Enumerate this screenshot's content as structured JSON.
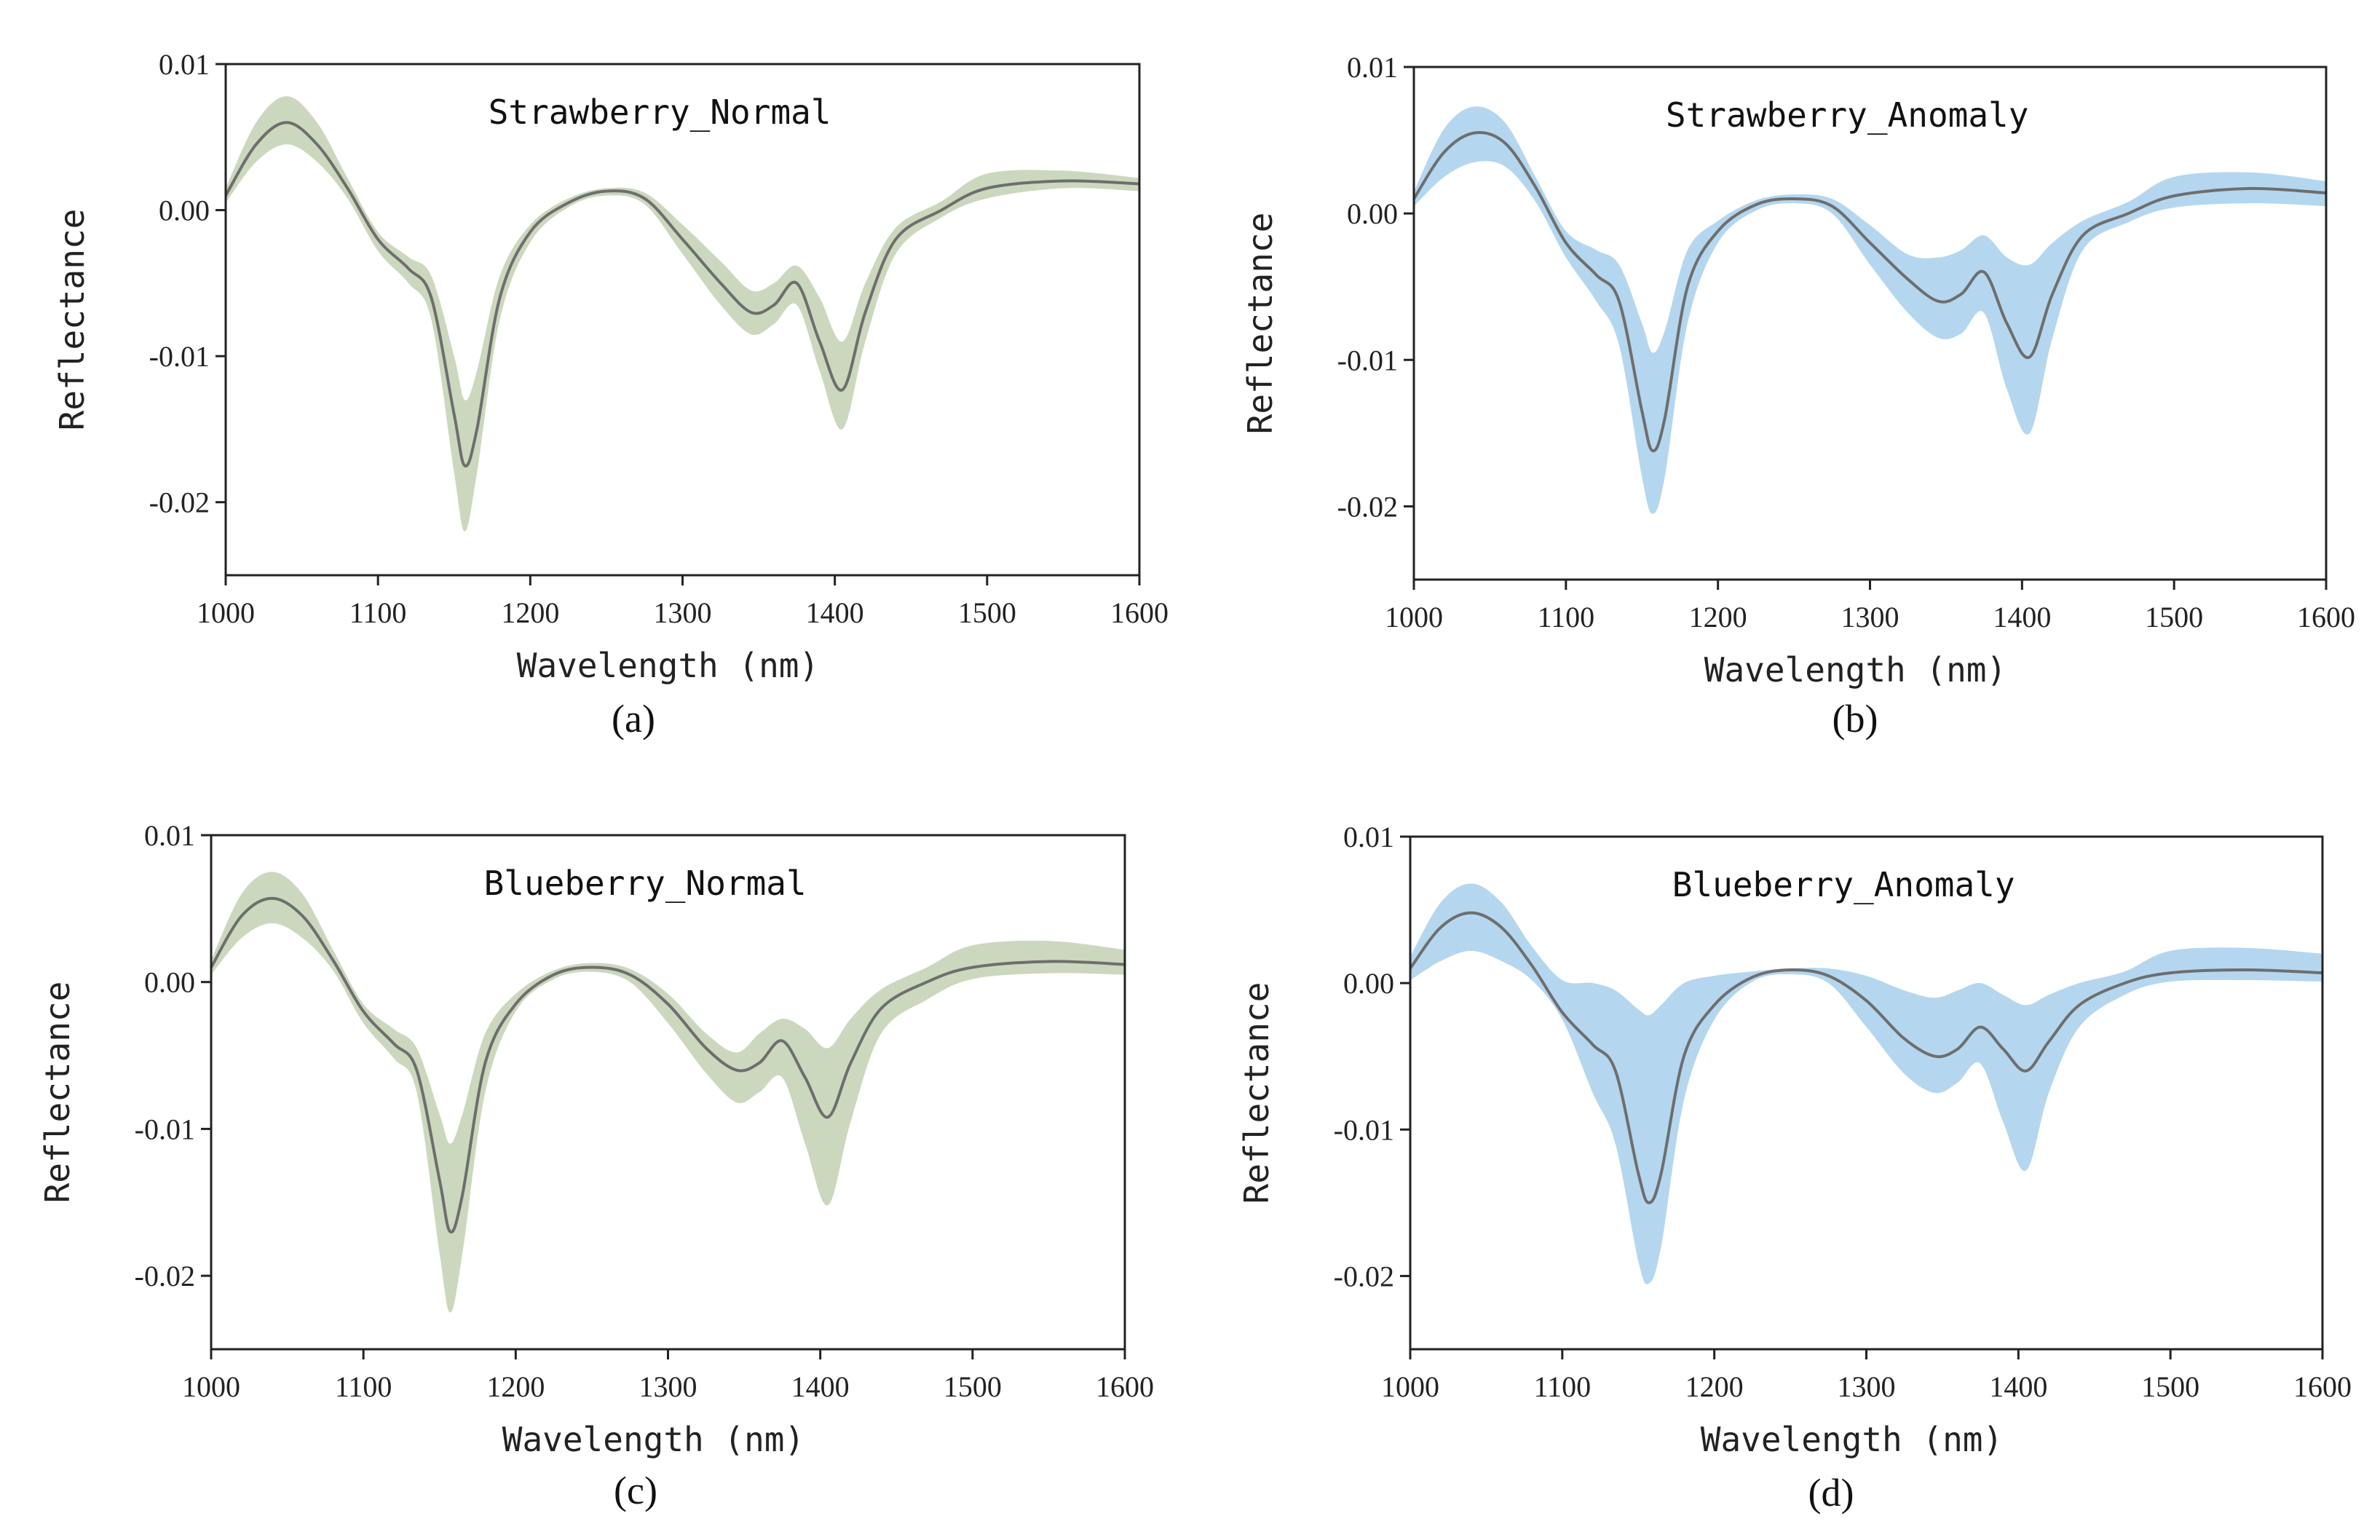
{
  "figure": {
    "colors": {
      "normal_band": "#ccd8bd",
      "anomaly_band": "#b4d7ef",
      "mean_line": "#6e6e6e",
      "axis": "#222222"
    }
  },
  "chart_data": [
    {
      "type": "area",
      "title": "Strawberry_Normal",
      "caption": "(a)",
      "xlabel": "Wavelength (nm)",
      "ylabel": "Reflectance",
      "xlim": [
        1000,
        1600
      ],
      "ylim": [
        -0.025,
        0.01
      ],
      "xticks": [
        1000,
        1100,
        1200,
        1300,
        1400,
        1500,
        1600
      ],
      "xtick_labels": [
        "1000",
        "1100",
        "1200",
        "1300",
        "1400",
        "1500",
        "1600"
      ],
      "yticks": [
        0.01,
        0.0,
        -0.01,
        -0.02
      ],
      "ytick_labels": [
        "0.01",
        "0.00",
        "-0.01",
        "-0.02"
      ],
      "band_color": "#ccd8bd",
      "x": [
        1000,
        1020,
        1040,
        1060,
        1080,
        1100,
        1120,
        1135,
        1150,
        1157,
        1165,
        1180,
        1200,
        1225,
        1250,
        1275,
        1300,
        1325,
        1345,
        1360,
        1375,
        1390,
        1405,
        1420,
        1440,
        1470,
        1500,
        1550,
        1600
      ],
      "series": [
        {
          "name": "mean",
          "values": [
            0.001,
            0.0045,
            0.006,
            0.0045,
            0.0015,
            -0.002,
            -0.004,
            -0.006,
            -0.014,
            -0.0175,
            -0.015,
            -0.006,
            -0.0015,
            0.0005,
            0.0013,
            0.0008,
            -0.002,
            -0.005,
            -0.007,
            -0.0065,
            -0.005,
            -0.009,
            -0.0123,
            -0.007,
            -0.002,
            0.0,
            0.0015,
            0.002,
            0.0018
          ]
        },
        {
          "name": "upper",
          "values": [
            0.0015,
            0.006,
            0.0078,
            0.006,
            0.0022,
            -0.0015,
            -0.0032,
            -0.0045,
            -0.01,
            -0.013,
            -0.011,
            -0.0045,
            -0.001,
            0.0008,
            0.0015,
            0.0012,
            -0.001,
            -0.0035,
            -0.0055,
            -0.005,
            -0.0038,
            -0.006,
            -0.009,
            -0.005,
            -0.0012,
            0.0006,
            0.0025,
            0.0027,
            0.0022
          ]
        },
        {
          "name": "lower",
          "values": [
            0.0005,
            0.0033,
            0.0045,
            0.0033,
            0.0008,
            -0.0028,
            -0.005,
            -0.0075,
            -0.018,
            -0.022,
            -0.018,
            -0.0075,
            -0.0022,
            0.0002,
            0.001,
            0.0004,
            -0.003,
            -0.0065,
            -0.0085,
            -0.0078,
            -0.0065,
            -0.011,
            -0.015,
            -0.009,
            -0.003,
            -0.0005,
            0.0008,
            0.0015,
            0.0013
          ]
        }
      ]
    },
    {
      "type": "area",
      "title": "Strawberry_Anomaly",
      "caption": "(b)",
      "xlabel": "Wavelength (nm)",
      "ylabel": "Reflectance",
      "xlim": [
        1000,
        1600
      ],
      "ylim": [
        -0.025,
        0.01
      ],
      "xticks": [
        1000,
        1100,
        1200,
        1300,
        1400,
        1500,
        1600
      ],
      "xtick_labels": [
        "1000",
        "1100",
        "1200",
        "1300",
        "1400",
        "1500",
        "1600"
      ],
      "yticks": [
        0.01,
        0.0,
        -0.01,
        -0.02
      ],
      "ytick_labels": [
        "0.01",
        "0.00",
        "-0.01",
        "-0.02"
      ],
      "band_color": "#b4d7ef",
      "x": [
        1000,
        1020,
        1040,
        1060,
        1080,
        1100,
        1120,
        1135,
        1150,
        1157,
        1165,
        1180,
        1200,
        1225,
        1250,
        1275,
        1300,
        1325,
        1345,
        1360,
        1375,
        1390,
        1405,
        1420,
        1440,
        1470,
        1500,
        1550,
        1600
      ],
      "series": [
        {
          "name": "mean",
          "values": [
            0.001,
            0.0042,
            0.0055,
            0.0048,
            0.0018,
            -0.002,
            -0.0042,
            -0.006,
            -0.0135,
            -0.0162,
            -0.014,
            -0.005,
            -0.0012,
            0.0006,
            0.001,
            0.0005,
            -0.002,
            -0.0045,
            -0.006,
            -0.0055,
            -0.004,
            -0.0075,
            -0.0098,
            -0.0055,
            -0.0015,
            0.0,
            0.0012,
            0.0017,
            0.0014
          ]
        },
        {
          "name": "upper",
          "values": [
            0.0015,
            0.0058,
            0.0073,
            0.0062,
            0.0025,
            -0.0012,
            -0.0025,
            -0.0035,
            -0.0075,
            -0.0095,
            -0.008,
            -0.0025,
            -0.0005,
            0.0009,
            0.0013,
            0.001,
            -0.0008,
            -0.0028,
            -0.003,
            -0.0025,
            -0.0015,
            -0.003,
            -0.0035,
            -0.002,
            -0.0005,
            0.0008,
            0.0025,
            0.0028,
            0.0022
          ]
        },
        {
          "name": "lower",
          "values": [
            0.0005,
            0.0025,
            0.0035,
            0.0032,
            0.0008,
            -0.003,
            -0.006,
            -0.009,
            -0.018,
            -0.0205,
            -0.018,
            -0.0075,
            -0.002,
            0.0002,
            0.0007,
            0.0,
            -0.0035,
            -0.0068,
            -0.0085,
            -0.0082,
            -0.0068,
            -0.012,
            -0.015,
            -0.0085,
            -0.0025,
            -0.0006,
            0.0004,
            0.0007,
            0.0005
          ]
        }
      ]
    },
    {
      "type": "area",
      "title": "Blueberry_Normal",
      "caption": "(c)",
      "xlabel": "Wavelength (nm)",
      "ylabel": "Reflectance",
      "xlim": [
        1000,
        1600
      ],
      "ylim": [
        -0.025,
        0.01
      ],
      "xticks": [
        1000,
        1100,
        1200,
        1300,
        1400,
        1500,
        1600
      ],
      "xtick_labels": [
        "1000",
        "1100",
        "1200",
        "1300",
        "1400",
        "1500",
        "1600"
      ],
      "yticks": [
        0.01,
        0.0,
        -0.01,
        -0.02
      ],
      "ytick_labels": [
        "0.01",
        "0.00",
        "-0.01",
        "-0.02"
      ],
      "band_color": "#ccd8bd",
      "x": [
        1000,
        1020,
        1040,
        1060,
        1080,
        1100,
        1120,
        1135,
        1150,
        1157,
        1165,
        1180,
        1200,
        1225,
        1250,
        1275,
        1300,
        1325,
        1345,
        1360,
        1375,
        1390,
        1405,
        1420,
        1440,
        1470,
        1500,
        1550,
        1600
      ],
      "series": [
        {
          "name": "mean",
          "values": [
            0.001,
            0.0045,
            0.0057,
            0.0045,
            0.0015,
            -0.002,
            -0.0042,
            -0.006,
            -0.0135,
            -0.017,
            -0.0145,
            -0.0055,
            -0.0015,
            0.0005,
            0.001,
            0.0005,
            -0.0015,
            -0.0045,
            -0.006,
            -0.0055,
            -0.004,
            -0.0065,
            -0.0092,
            -0.0055,
            -0.0018,
            0.0,
            0.001,
            0.0014,
            0.0012
          ]
        },
        {
          "name": "upper",
          "values": [
            0.0015,
            0.006,
            0.0075,
            0.006,
            0.0022,
            -0.0015,
            -0.0032,
            -0.0045,
            -0.009,
            -0.011,
            -0.009,
            -0.0035,
            -0.0008,
            0.0008,
            0.0013,
            0.0009,
            -0.0008,
            -0.0035,
            -0.0048,
            -0.0035,
            -0.0025,
            -0.0032,
            -0.0045,
            -0.0025,
            -0.0005,
            0.001,
            0.0025,
            0.0028,
            0.0022
          ]
        },
        {
          "name": "lower",
          "values": [
            0.0005,
            0.003,
            0.004,
            0.003,
            0.0008,
            -0.0028,
            -0.0052,
            -0.0075,
            -0.0185,
            -0.0225,
            -0.0185,
            -0.0075,
            -0.002,
            0.0002,
            0.0007,
            0.0,
            -0.0028,
            -0.0062,
            -0.0082,
            -0.0075,
            -0.0065,
            -0.011,
            -0.0152,
            -0.0095,
            -0.0035,
            -0.0012,
            0.0002,
            0.0006,
            0.0005
          ]
        }
      ]
    },
    {
      "type": "area",
      "title": "Blueberry_Anomaly",
      "caption": "(d)",
      "xlabel": "Wavelength (nm)",
      "ylabel": "Reflectance",
      "xlim": [
        1000,
        1600
      ],
      "ylim": [
        -0.025,
        0.01
      ],
      "xticks": [
        1000,
        1100,
        1200,
        1300,
        1400,
        1500,
        1600
      ],
      "xtick_labels": [
        "1000",
        "1100",
        "1200",
        "1300",
        "1400",
        "1500",
        "1600"
      ],
      "yticks": [
        0.01,
        0.0,
        -0.01,
        -0.02
      ],
      "ytick_labels": [
        "0.01",
        "0.00",
        "-0.01",
        "-0.02"
      ],
      "band_color": "#b4d7ef",
      "x": [
        1000,
        1020,
        1040,
        1060,
        1080,
        1100,
        1120,
        1135,
        1150,
        1157,
        1165,
        1180,
        1200,
        1225,
        1250,
        1275,
        1300,
        1325,
        1345,
        1360,
        1375,
        1390,
        1405,
        1420,
        1440,
        1470,
        1500,
        1550,
        1600
      ],
      "series": [
        {
          "name": "mean",
          "values": [
            0.001,
            0.0038,
            0.0048,
            0.0038,
            0.0012,
            -0.002,
            -0.0042,
            -0.006,
            -0.013,
            -0.015,
            -0.013,
            -0.005,
            -0.0015,
            0.0004,
            0.0009,
            0.0005,
            -0.0012,
            -0.0038,
            -0.005,
            -0.0045,
            -0.003,
            -0.0045,
            -0.006,
            -0.004,
            -0.0015,
            0.0,
            0.0007,
            0.0009,
            0.0007
          ]
        },
        {
          "name": "upper",
          "values": [
            0.0018,
            0.0055,
            0.0068,
            0.0055,
            0.0025,
            0.0002,
            0.0,
            -0.0005,
            -0.0018,
            -0.0022,
            -0.0015,
            0.0,
            0.0005,
            0.0008,
            0.001,
            0.001,
            0.0005,
            -0.0005,
            -0.001,
            -0.0005,
            0.0,
            -0.0008,
            -0.0015,
            -0.0008,
            0.0,
            0.0008,
            0.0022,
            0.0024,
            0.002
          ]
        },
        {
          "name": "lower",
          "values": [
            0.0002,
            0.0015,
            0.0022,
            0.0015,
            0.0002,
            -0.0025,
            -0.0075,
            -0.011,
            -0.019,
            -0.0205,
            -0.018,
            -0.008,
            -0.0025,
            0.0001,
            0.0006,
            0.0,
            -0.003,
            -0.0062,
            -0.0075,
            -0.0068,
            -0.0055,
            -0.0095,
            -0.0128,
            -0.0075,
            -0.003,
            -0.0008,
            0.0001,
            0.0002,
            0.0001
          ]
        }
      ]
    }
  ]
}
